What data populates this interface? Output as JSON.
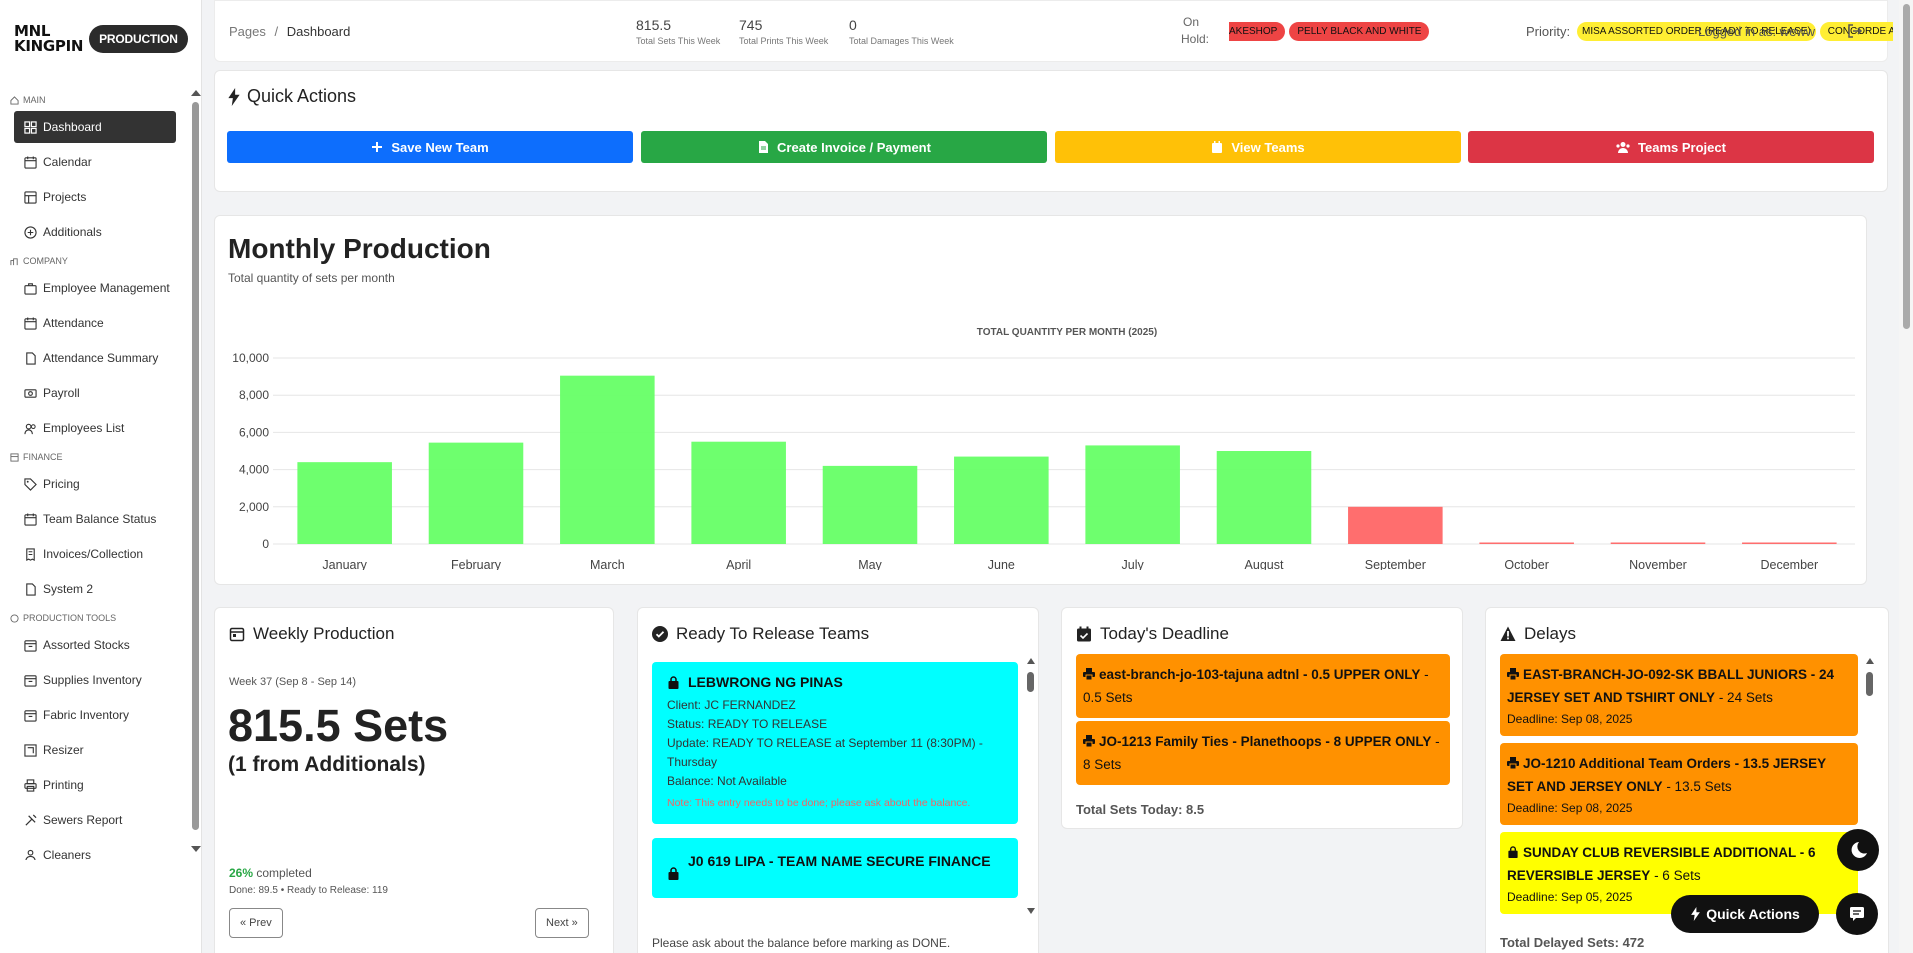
{
  "sidebar": {
    "logo_text_1": "MNL",
    "logo_text_2": "KINGPIN",
    "logo_badge": "PRODUCTION",
    "sections": [
      {
        "title": "MAIN",
        "items": [
          {
            "label": "Dashboard",
            "icon": "grid-icon",
            "active": true
          },
          {
            "label": "Calendar",
            "icon": "calendar-icon"
          },
          {
            "label": "Projects",
            "icon": "projects-icon"
          },
          {
            "label": "Additionals",
            "icon": "plus-circle-icon"
          }
        ]
      },
      {
        "title": "COMPANY",
        "items": [
          {
            "label": "Employee Management",
            "icon": "briefcase-icon"
          },
          {
            "label": "Attendance",
            "icon": "calendar-icon"
          },
          {
            "label": "Attendance Summary",
            "icon": "document-icon"
          },
          {
            "label": "Payroll",
            "icon": "money-icon"
          },
          {
            "label": "Employees List",
            "icon": "users-icon"
          }
        ]
      },
      {
        "title": "FINANCE",
        "items": [
          {
            "label": "Pricing",
            "icon": "tag-icon"
          },
          {
            "label": "Team Balance Status",
            "icon": "calendar-icon"
          },
          {
            "label": "Invoices/Collection",
            "icon": "receipt-icon"
          },
          {
            "label": "System 2",
            "icon": "document-icon"
          }
        ]
      },
      {
        "title": "PRODUCTION TOOLS",
        "items": [
          {
            "label": "Assorted Stocks",
            "icon": "box-icon"
          },
          {
            "label": "Supplies Inventory",
            "icon": "box-icon"
          },
          {
            "label": "Fabric Inventory",
            "icon": "box-icon"
          },
          {
            "label": "Resizer",
            "icon": "resize-icon"
          },
          {
            "label": "Printing",
            "icon": "printer-icon"
          },
          {
            "label": "Sewers Report",
            "icon": "tools-icon"
          },
          {
            "label": "Cleaners",
            "icon": "cleaner-icon"
          }
        ]
      }
    ]
  },
  "header": {
    "crumb_root": "Pages",
    "crumb_sep": "/",
    "crumb_current": "Dashboard",
    "stats": [
      {
        "value": "815.5",
        "label": "Total Sets This Week"
      },
      {
        "value": "745",
        "label": "Total Prints This Week"
      },
      {
        "value": "0",
        "label": "Total Damages This Week"
      }
    ],
    "on_hold_label_1": "On",
    "on_hold_label_2": "Hold:",
    "on_hold_pills": [
      "AKESHOP",
      "PELLY BLACK AND WHITE"
    ],
    "priority_label": "Priority:",
    "priority_pills": [
      "MISA ASSORTED ORDER (READY TO RELEASE)",
      "CONCORDE AD"
    ],
    "logged_in": "Logged in as: wewwol"
  },
  "quick_actions": {
    "title": "Quick Actions",
    "buttons": [
      {
        "label": "Save New Team",
        "color": "#0d6efd"
      },
      {
        "label": "Create Invoice / Payment",
        "color": "#28a745"
      },
      {
        "label": "View Teams",
        "color": "#ffc107"
      },
      {
        "label": "Teams Project",
        "color": "#dc3545"
      }
    ]
  },
  "monthly": {
    "title": "Monthly Production",
    "subtitle": "Total quantity of sets per month"
  },
  "chart_data": {
    "type": "bar",
    "title": "TOTAL QUANTITY PER MONTH (2025)",
    "categories": [
      "January",
      "February",
      "March",
      "April",
      "May",
      "June",
      "July",
      "August",
      "September",
      "October",
      "November",
      "December"
    ],
    "values": [
      4400,
      5450,
      9050,
      5500,
      4200,
      4700,
      5300,
      5000,
      2000,
      0,
      0,
      0
    ],
    "colors": [
      "#66ff66",
      "#66ff66",
      "#66ff66",
      "#66ff66",
      "#66ff66",
      "#66ff66",
      "#66ff66",
      "#66ff66",
      "#ff6666",
      "#ff6666",
      "#ff6666",
      "#ff6666"
    ],
    "yticks": [
      "0",
      "2,000",
      "4,000",
      "6,000",
      "8,000",
      "10,000"
    ],
    "ylim": [
      0,
      10000
    ],
    "grid": true
  },
  "weekly": {
    "title": "Weekly Production",
    "week": "Week 37 (Sep 8 - Sep 14)",
    "total": "815.5 Sets",
    "sub": "(1 from Additionals)",
    "pct": "26%",
    "pct_label": "completed",
    "done": "Done: 89.5 • Ready to Release: 119",
    "prev": "« Prev",
    "next": "Next »"
  },
  "ready": {
    "title": "Ready To Release Teams",
    "items": [
      {
        "name": "LEBWRONG NG PINAS",
        "client": "Client: JC FERNANDEZ",
        "status": "Status: READY TO RELEASE",
        "update": "Update: READY TO RELEASE at September 11 (8:30PM) - Thursday",
        "balance": "Balance: Not Available",
        "note": "Note: This entry needs to be done; please ask about the balance."
      },
      {
        "name": "J0 619 LIPA - TEAM NAME SECURE FINANCE",
        "client": "",
        "status": "",
        "update": "",
        "balance": "",
        "note": ""
      }
    ],
    "footer": "Please ask about the balance before marking as DONE."
  },
  "deadline": {
    "title": "Today's Deadline",
    "items": [
      {
        "name": "east-branch-jo-103-tajuna adtnl - 0.5 UPPER ONLY",
        "sets": "- 0.5 Sets"
      },
      {
        "name": "JO-1213 Family Ties - Planethoops - 8 UPPER ONLY",
        "sets": "- 8 Sets"
      }
    ],
    "total": "Total Sets Today: 8.5"
  },
  "delays": {
    "title": "Delays",
    "items": [
      {
        "name": "EAST-BRANCH-JO-092-SK BBALL JUNIORS - 24 JERSEY SET AND TSHIRT ONLY",
        "sets": "- 24 Sets",
        "deadline": "Deadline: Sep 08, 2025",
        "color": "#ff9100"
      },
      {
        "name": "JO-1210 Additional Team Orders - 13.5 JERSEY SET AND JERSEY ONLY",
        "sets": "- 13.5 Sets",
        "deadline": "Deadline: Sep 08, 2025",
        "color": "#ff9100"
      },
      {
        "name": "SUNDAY CLUB REVERSIBLE ADDITIONAL - 6 REVERSIBLE JERSEY",
        "sets": "- 6 Sets",
        "deadline": "Deadline: Sep 05, 2025",
        "color": "#ffff00"
      }
    ],
    "total": "Total Delayed Sets: 472"
  },
  "fab": {
    "quick_actions": "Quick Actions"
  }
}
